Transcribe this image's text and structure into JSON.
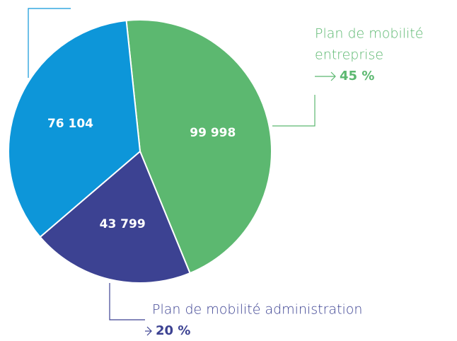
{
  "chart_data": {
    "type": "pie",
    "categories": [
      null,
      null,
      null
    ],
    "values": [
      99998,
      43799,
      76104
    ],
    "value_labels": [
      "99 998",
      "43 799",
      "76 104"
    ],
    "colors": [
      "#5cb870",
      "#3c4292",
      "#0d96d9"
    ],
    "annotations": [
      {
        "label_lines": [
          "Plan de mobilité",
          "entreprise"
        ],
        "value_label": "45 %",
        "color": "#5cb870"
      },
      {
        "label_lines": [
          "Plan de mobilité administration"
        ],
        "value_label": "20 %",
        "color": "#3c4292"
      }
    ]
  }
}
